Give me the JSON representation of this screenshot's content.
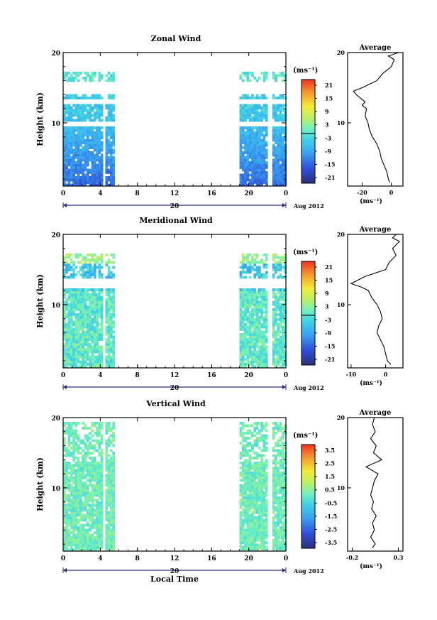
{
  "chart_data": [
    {
      "type": "heatmap",
      "title": "Zonal Wind",
      "ylabel": "Height (km)",
      "unit": "(ms⁻¹)",
      "xticks": [
        "0",
        "4",
        "8",
        "12",
        "16",
        "20",
        "0"
      ],
      "yticks": [
        "10",
        "20"
      ],
      "ylim": [
        1,
        20
      ],
      "date_center": "20",
      "date_label": "Aug 2012",
      "colorbar_ticks": [
        "21",
        "15",
        "9",
        "3",
        "-3",
        "-9",
        "-15",
        "-21"
      ],
      "colorbar_range": [
        -24,
        24
      ],
      "data_windows_local_time": [
        [
          0,
          5.5
        ],
        [
          19,
          24
        ]
      ],
      "average": {
        "title": "Average",
        "xunit": "(ms⁻¹)",
        "xticks": [
          "-20",
          "0"
        ],
        "yticks": [
          "10",
          "20"
        ],
        "xlim": [
          -30,
          8
        ],
        "profile": {
          "height": [
            1.5,
            2,
            3,
            4,
            5,
            6,
            7,
            8,
            9,
            10,
            11,
            12,
            12.5,
            13,
            14,
            14.5,
            15,
            16,
            17,
            18,
            19,
            19.5,
            20
          ],
          "value": [
            -1,
            -2,
            -3,
            -5,
            -7,
            -8,
            -10,
            -13,
            -15,
            -16,
            -18,
            -17,
            -20,
            -18,
            -24,
            -26,
            -20,
            -10,
            -6,
            0,
            2,
            -2,
            5
          ]
        }
      }
    },
    {
      "type": "heatmap",
      "title": "Meridional Wind",
      "ylabel": "Height (km)",
      "unit": "(ms⁻¹)",
      "xticks": [
        "0",
        "4",
        "8",
        "12",
        "16",
        "20",
        "0"
      ],
      "yticks": [
        "10",
        "20"
      ],
      "ylim": [
        1,
        20
      ],
      "date_center": "20",
      "date_label": "Aug 2012",
      "colorbar_ticks": [
        "21",
        "15",
        "9",
        "3",
        "-3",
        "-9",
        "-15",
        "-21"
      ],
      "colorbar_range": [
        -24,
        24
      ],
      "data_windows_local_time": [
        [
          0,
          5.5
        ],
        [
          19,
          24
        ]
      ],
      "average": {
        "title": "Average",
        "xunit": "(ms⁻¹)",
        "xticks": [
          "-10",
          "0"
        ],
        "yticks": [
          "10",
          "20"
        ],
        "xlim": [
          -11,
          5
        ],
        "profile": {
          "height": [
            1.5,
            2,
            3,
            4,
            5,
            6,
            7,
            8,
            9,
            10,
            11,
            12,
            12.5,
            13,
            14,
            15,
            16,
            17,
            18,
            19,
            19.5,
            20
          ],
          "value": [
            1.5,
            0.5,
            0,
            -0.5,
            -1.5,
            -2.5,
            -2,
            -1,
            -1.5,
            -2.5,
            -4,
            -5,
            -7,
            -10,
            -6,
            0,
            1,
            3,
            2,
            4,
            2,
            3
          ]
        }
      }
    },
    {
      "type": "heatmap",
      "title": "Vertical Wind",
      "ylabel": "Height (km)",
      "xlabel": "Local Time",
      "unit": "(ms⁻¹)",
      "xticks": [
        "0",
        "4",
        "8",
        "12",
        "16",
        "20",
        "0"
      ],
      "yticks": [
        "10",
        "20"
      ],
      "ylim": [
        1,
        20
      ],
      "date_center": "20",
      "date_label": "Aug 2012",
      "colorbar_ticks": [
        "3.5",
        "2.5",
        "1.5",
        "0.5",
        "-0.5",
        "-1.5",
        "-2.5",
        "-3.5"
      ],
      "colorbar_range": [
        -4,
        4
      ],
      "data_windows_local_time": [
        [
          0,
          5.5
        ],
        [
          19,
          24
        ]
      ],
      "average": {
        "title": "Average",
        "xunit": "(ms⁻¹)",
        "xticks": [
          "-0.2",
          "0.3"
        ],
        "yticks": [
          "10",
          "20"
        ],
        "xlim": [
          -0.25,
          0.35
        ],
        "profile": {
          "height": [
            1.5,
            2,
            3,
            4,
            5,
            6,
            7,
            8,
            9,
            10,
            11,
            12,
            13,
            14,
            15,
            16,
            17,
            18,
            19,
            20
          ],
          "value": [
            0.02,
            0.05,
            0.0,
            0.04,
            0.02,
            0.06,
            0.01,
            0.03,
            0.0,
            0.02,
            0.04,
            0.08,
            -0.05,
            0.12,
            0.03,
            0.06,
            0.0,
            0.05,
            0.02,
            0.04
          ]
        }
      }
    }
  ]
}
